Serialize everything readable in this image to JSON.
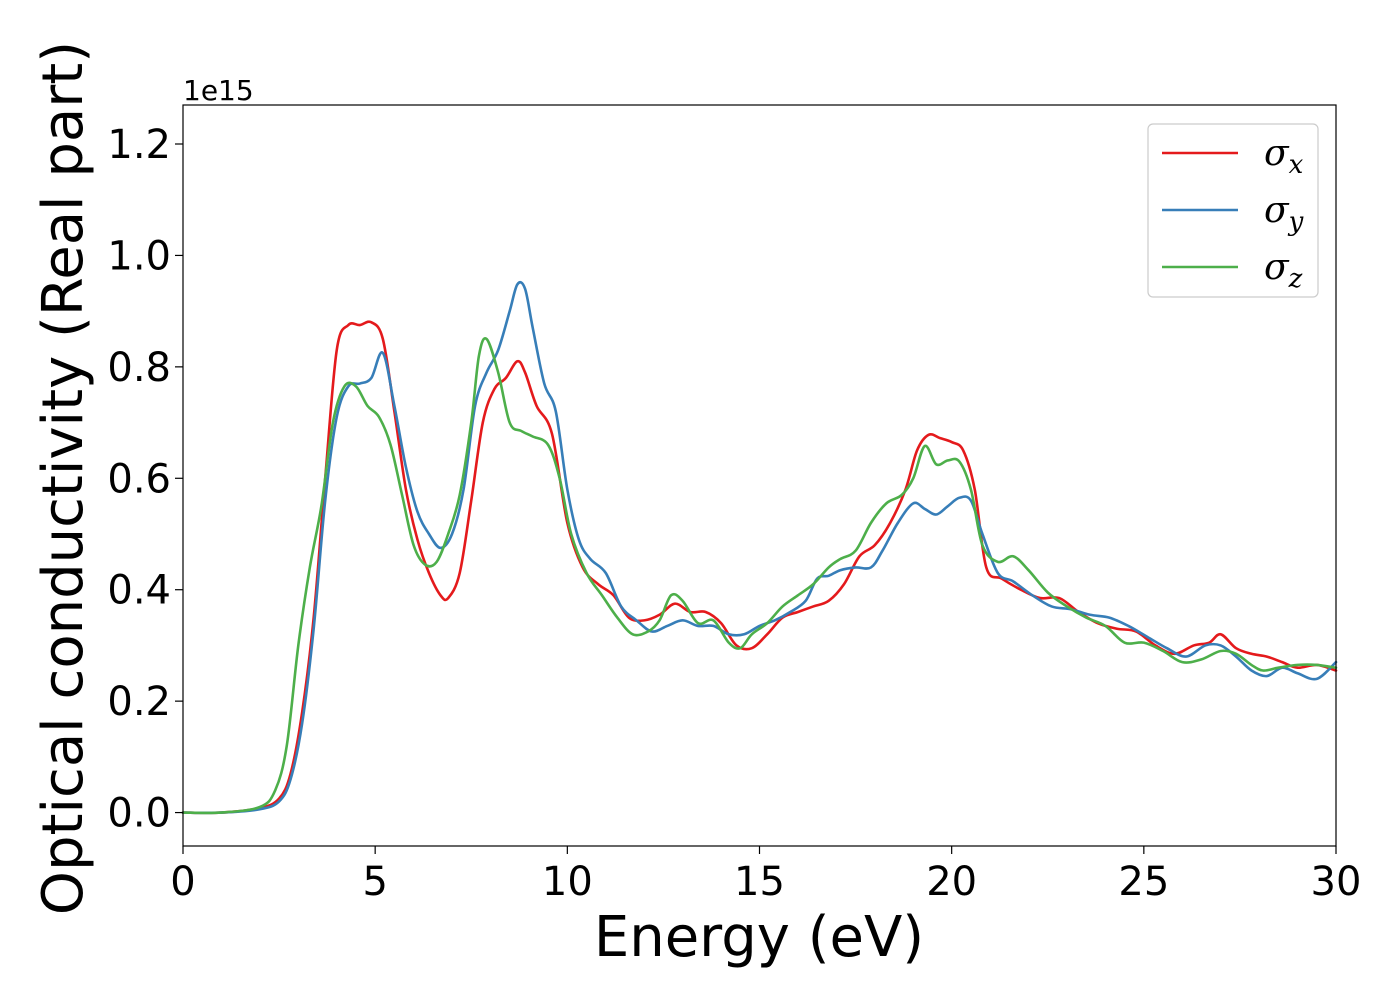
{
  "chart_data": {
    "type": "line",
    "xlabel": "Energy (eV)",
    "ylabel": "Optical conductivity (Real part)",
    "y_offset_label": "1e15",
    "xlim": [
      0,
      30
    ],
    "ylim": [
      -0.06,
      1.27
    ],
    "x_ticks": [
      0,
      5,
      10,
      15,
      20,
      25,
      30
    ],
    "x_tick_labels": [
      "0",
      "5",
      "10",
      "15",
      "20",
      "25",
      "30"
    ],
    "y_ticks": [
      0.0,
      0.2,
      0.4,
      0.6,
      0.8,
      1.0,
      1.2
    ],
    "y_tick_labels": [
      "0.0",
      "0.2",
      "0.4",
      "0.6",
      "0.8",
      "1.0",
      "1.2"
    ],
    "grid": false,
    "legend_position": "top-right",
    "series": [
      {
        "name": "σ",
        "subscript": "x",
        "color": "#e41a1c",
        "points": [
          [
            0,
            0
          ],
          [
            1,
            0
          ],
          [
            2,
            0.008
          ],
          [
            2.5,
            0.025
          ],
          [
            2.8,
            0.07
          ],
          [
            3.1,
            0.18
          ],
          [
            3.4,
            0.35
          ],
          [
            3.7,
            0.6
          ],
          [
            4,
            0.83
          ],
          [
            4.3,
            0.875
          ],
          [
            4.6,
            0.875
          ],
          [
            4.9,
            0.88
          ],
          [
            5.2,
            0.85
          ],
          [
            5.5,
            0.72
          ],
          [
            5.8,
            0.58
          ],
          [
            6.1,
            0.49
          ],
          [
            6.4,
            0.43
          ],
          [
            6.7,
            0.39
          ],
          [
            6.9,
            0.385
          ],
          [
            7.2,
            0.43
          ],
          [
            7.5,
            0.56
          ],
          [
            7.8,
            0.7
          ],
          [
            8.1,
            0.76
          ],
          [
            8.4,
            0.78
          ],
          [
            8.7,
            0.81
          ],
          [
            8.9,
            0.79
          ],
          [
            9.2,
            0.73
          ],
          [
            9.6,
            0.68
          ],
          [
            10,
            0.52
          ],
          [
            10.4,
            0.44
          ],
          [
            10.8,
            0.41
          ],
          [
            11.2,
            0.39
          ],
          [
            11.6,
            0.35
          ],
          [
            12,
            0.345
          ],
          [
            12.4,
            0.355
          ],
          [
            12.8,
            0.375
          ],
          [
            13.2,
            0.36
          ],
          [
            13.6,
            0.36
          ],
          [
            14,
            0.34
          ],
          [
            14.4,
            0.3
          ],
          [
            14.8,
            0.295
          ],
          [
            15.2,
            0.32
          ],
          [
            15.6,
            0.35
          ],
          [
            16,
            0.36
          ],
          [
            16.4,
            0.37
          ],
          [
            16.8,
            0.38
          ],
          [
            17.2,
            0.41
          ],
          [
            17.6,
            0.46
          ],
          [
            18,
            0.48
          ],
          [
            18.4,
            0.52
          ],
          [
            18.8,
            0.58
          ],
          [
            19.1,
            0.65
          ],
          [
            19.4,
            0.678
          ],
          [
            19.7,
            0.672
          ],
          [
            20,
            0.665
          ],
          [
            20.3,
            0.65
          ],
          [
            20.6,
            0.58
          ],
          [
            20.9,
            0.44
          ],
          [
            21.3,
            0.42
          ],
          [
            21.8,
            0.4
          ],
          [
            22.3,
            0.385
          ],
          [
            22.8,
            0.385
          ],
          [
            23.3,
            0.36
          ],
          [
            23.8,
            0.34
          ],
          [
            24.3,
            0.33
          ],
          [
            24.8,
            0.325
          ],
          [
            25.3,
            0.3
          ],
          [
            25.8,
            0.285
          ],
          [
            26.3,
            0.3
          ],
          [
            26.7,
            0.305
          ],
          [
            27,
            0.32
          ],
          [
            27.4,
            0.295
          ],
          [
            27.8,
            0.285
          ],
          [
            28.2,
            0.28
          ],
          [
            28.6,
            0.27
          ],
          [
            29,
            0.26
          ],
          [
            29.5,
            0.265
          ],
          [
            30,
            0.255
          ]
        ]
      },
      {
        "name": "σ",
        "subscript": "y",
        "color": "#377eb8",
        "points": [
          [
            0,
            0
          ],
          [
            1,
            0
          ],
          [
            2,
            0.006
          ],
          [
            2.5,
            0.02
          ],
          [
            2.8,
            0.06
          ],
          [
            3.1,
            0.16
          ],
          [
            3.4,
            0.33
          ],
          [
            3.7,
            0.56
          ],
          [
            4,
            0.71
          ],
          [
            4.3,
            0.765
          ],
          [
            4.6,
            0.77
          ],
          [
            4.9,
            0.78
          ],
          [
            5.2,
            0.825
          ],
          [
            5.5,
            0.73
          ],
          [
            5.8,
            0.62
          ],
          [
            6.1,
            0.54
          ],
          [
            6.4,
            0.5
          ],
          [
            6.7,
            0.475
          ],
          [
            7,
            0.5
          ],
          [
            7.3,
            0.58
          ],
          [
            7.6,
            0.73
          ],
          [
            7.9,
            0.79
          ],
          [
            8.2,
            0.83
          ],
          [
            8.5,
            0.9
          ],
          [
            8.7,
            0.948
          ],
          [
            8.9,
            0.94
          ],
          [
            9.1,
            0.87
          ],
          [
            9.4,
            0.77
          ],
          [
            9.7,
            0.72
          ],
          [
            10,
            0.58
          ],
          [
            10.3,
            0.49
          ],
          [
            10.6,
            0.455
          ],
          [
            11,
            0.43
          ],
          [
            11.4,
            0.37
          ],
          [
            11.8,
            0.345
          ],
          [
            12.2,
            0.325
          ],
          [
            12.6,
            0.335
          ],
          [
            13,
            0.345
          ],
          [
            13.4,
            0.335
          ],
          [
            13.8,
            0.335
          ],
          [
            14.2,
            0.32
          ],
          [
            14.6,
            0.32
          ],
          [
            15,
            0.335
          ],
          [
            15.4,
            0.345
          ],
          [
            15.8,
            0.36
          ],
          [
            16.2,
            0.38
          ],
          [
            16.5,
            0.42
          ],
          [
            16.8,
            0.425
          ],
          [
            17.1,
            0.435
          ],
          [
            17.5,
            0.44
          ],
          [
            17.9,
            0.44
          ],
          [
            18.2,
            0.47
          ],
          [
            18.6,
            0.52
          ],
          [
            19,
            0.555
          ],
          [
            19.3,
            0.545
          ],
          [
            19.6,
            0.535
          ],
          [
            19.9,
            0.55
          ],
          [
            20.2,
            0.565
          ],
          [
            20.5,
            0.56
          ],
          [
            20.8,
            0.5
          ],
          [
            21.2,
            0.43
          ],
          [
            21.6,
            0.415
          ],
          [
            22.1,
            0.39
          ],
          [
            22.6,
            0.37
          ],
          [
            23.1,
            0.365
          ],
          [
            23.6,
            0.355
          ],
          [
            24.1,
            0.35
          ],
          [
            24.6,
            0.335
          ],
          [
            25.1,
            0.315
          ],
          [
            25.6,
            0.295
          ],
          [
            26.1,
            0.28
          ],
          [
            26.6,
            0.3
          ],
          [
            27,
            0.3
          ],
          [
            27.4,
            0.28
          ],
          [
            27.8,
            0.255
          ],
          [
            28.2,
            0.245
          ],
          [
            28.6,
            0.26
          ],
          [
            29,
            0.25
          ],
          [
            29.5,
            0.24
          ],
          [
            30,
            0.27
          ]
        ]
      },
      {
        "name": "σ",
        "subscript": "z",
        "color": "#4daf4a",
        "points": [
          [
            0,
            0
          ],
          [
            1,
            0
          ],
          [
            2,
            0.01
          ],
          [
            2.4,
            0.04
          ],
          [
            2.7,
            0.12
          ],
          [
            3,
            0.3
          ],
          [
            3.3,
            0.44
          ],
          [
            3.6,
            0.55
          ],
          [
            3.9,
            0.7
          ],
          [
            4.2,
            0.765
          ],
          [
            4.5,
            0.765
          ],
          [
            4.8,
            0.73
          ],
          [
            5.1,
            0.71
          ],
          [
            5.4,
            0.66
          ],
          [
            5.7,
            0.57
          ],
          [
            6,
            0.48
          ],
          [
            6.3,
            0.445
          ],
          [
            6.6,
            0.45
          ],
          [
            6.9,
            0.5
          ],
          [
            7.2,
            0.57
          ],
          [
            7.5,
            0.7
          ],
          [
            7.7,
            0.82
          ],
          [
            7.9,
            0.85
          ],
          [
            8.2,
            0.79
          ],
          [
            8.5,
            0.7
          ],
          [
            8.8,
            0.685
          ],
          [
            9.1,
            0.675
          ],
          [
            9.5,
            0.66
          ],
          [
            9.8,
            0.6
          ],
          [
            10.1,
            0.5
          ],
          [
            10.5,
            0.43
          ],
          [
            10.9,
            0.39
          ],
          [
            11.3,
            0.35
          ],
          [
            11.7,
            0.32
          ],
          [
            12.1,
            0.325
          ],
          [
            12.4,
            0.345
          ],
          [
            12.7,
            0.39
          ],
          [
            13,
            0.38
          ],
          [
            13.4,
            0.34
          ],
          [
            13.8,
            0.345
          ],
          [
            14.2,
            0.305
          ],
          [
            14.5,
            0.295
          ],
          [
            14.8,
            0.32
          ],
          [
            15.2,
            0.34
          ],
          [
            15.6,
            0.37
          ],
          [
            16,
            0.39
          ],
          [
            16.4,
            0.41
          ],
          [
            16.8,
            0.44
          ],
          [
            17.1,
            0.455
          ],
          [
            17.5,
            0.47
          ],
          [
            17.9,
            0.52
          ],
          [
            18.3,
            0.555
          ],
          [
            18.7,
            0.57
          ],
          [
            19,
            0.6
          ],
          [
            19.3,
            0.658
          ],
          [
            19.6,
            0.625
          ],
          [
            19.9,
            0.632
          ],
          [
            20.2,
            0.63
          ],
          [
            20.5,
            0.58
          ],
          [
            20.8,
            0.48
          ],
          [
            21.2,
            0.45
          ],
          [
            21.6,
            0.46
          ],
          [
            22,
            0.435
          ],
          [
            22.5,
            0.395
          ],
          [
            23,
            0.37
          ],
          [
            23.5,
            0.35
          ],
          [
            24,
            0.335
          ],
          [
            24.5,
            0.305
          ],
          [
            25,
            0.305
          ],
          [
            25.5,
            0.29
          ],
          [
            26,
            0.27
          ],
          [
            26.5,
            0.275
          ],
          [
            27,
            0.29
          ],
          [
            27.4,
            0.285
          ],
          [
            27.8,
            0.265
          ],
          [
            28.1,
            0.255
          ],
          [
            28.5,
            0.26
          ],
          [
            29,
            0.265
          ],
          [
            29.5,
            0.265
          ],
          [
            30,
            0.26
          ]
        ]
      }
    ]
  }
}
